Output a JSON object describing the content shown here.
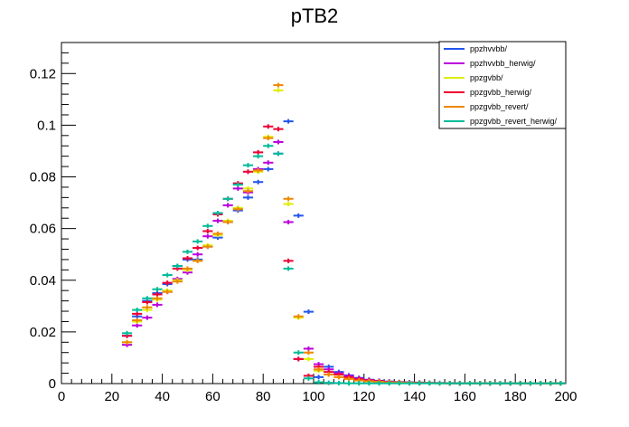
{
  "chart_data": {
    "type": "scatter",
    "title": "pTB2",
    "xlabel": "",
    "ylabel": "",
    "xlim": [
      0,
      200
    ],
    "ylim": [
      0,
      0.132
    ],
    "xticks": [
      "0",
      "20",
      "40",
      "60",
      "80",
      "100",
      "120",
      "140",
      "160",
      "180",
      "200"
    ],
    "xtick_values": [
      0,
      20,
      40,
      60,
      80,
      100,
      120,
      140,
      160,
      180,
      200
    ],
    "yticks": [
      "0",
      "0.02",
      "0.04",
      "0.06",
      "0.08",
      "0.1",
      "0.12"
    ],
    "ytick_values": [
      0,
      0.02,
      0.04,
      0.06,
      0.08,
      0.1,
      0.12
    ],
    "bin_width": 4,
    "grid": false,
    "legend_position": "top-right",
    "x": [
      26,
      30,
      34,
      38,
      42,
      46,
      50,
      54,
      58,
      62,
      66,
      70,
      74,
      78,
      82,
      86,
      90,
      94,
      98,
      102,
      106,
      110,
      114,
      118,
      122,
      126,
      130,
      134,
      138,
      142,
      146,
      150,
      154,
      158,
      162,
      166,
      170,
      174,
      178,
      182,
      186,
      190,
      194,
      198
    ],
    "series": [
      {
        "name": "ppzhvvbb/",
        "color": "#2255ee",
        "values": [
          0.0185,
          0.026,
          0.032,
          0.035,
          0.0385,
          0.0455,
          0.048,
          0.048,
          0.053,
          0.0565,
          0.0625,
          0.067,
          0.072,
          0.078,
          0.083,
          0.089,
          0.1015,
          0.065,
          0.0278,
          0.0025,
          0.0065,
          0.0045,
          0.0032,
          0.0022,
          0.0015,
          0.0011,
          0.0008,
          0.0006,
          0.0005,
          0.0004,
          0.0003,
          0.0002,
          0.0002,
          0.0001,
          0.0001,
          0.0001,
          0.0001,
          0.0001,
          0.0001,
          0.0001,
          0.0001,
          0.0001,
          0.0001,
          0.0001
        ]
      },
      {
        "name": "ppzhvvbb_herwig/",
        "color": "#bb00dd",
        "values": [
          0.015,
          0.0225,
          0.0255,
          0.0305,
          0.0355,
          0.0405,
          0.043,
          0.05,
          0.057,
          0.063,
          0.069,
          0.0755,
          0.074,
          0.083,
          0.0855,
          0.0935,
          0.0625,
          0.0095,
          0.0135,
          0.0075,
          0.0055,
          0.004,
          0.003,
          0.002,
          0.0014,
          0.001,
          0.0007,
          0.0005,
          0.0004,
          0.0003,
          0.0002,
          0.0002,
          0.0001,
          0.0001,
          0.0001,
          0.0001,
          0.0001,
          0.0001,
          0.0001,
          0.0001,
          0.0001,
          0.0001,
          0.0001,
          0.0001
        ]
      },
      {
        "name": "ppzgvbb/",
        "color": "#ddee00",
        "values": [
          0.016,
          0.024,
          0.0285,
          0.0325,
          0.036,
          0.04,
          0.044,
          0.0475,
          0.0535,
          0.0575,
          0.063,
          0.068,
          0.0755,
          0.082,
          0.0955,
          0.1135,
          0.0695,
          0.0255,
          0.0095,
          0.005,
          0.0035,
          0.0025,
          0.0018,
          0.0012,
          0.0009,
          0.0007,
          0.0005,
          0.0004,
          0.0003,
          0.0002,
          0.0002,
          0.0001,
          0.0001,
          0.0001,
          0.0001,
          0.0001,
          0.0001,
          0.0001,
          0.0001,
          0.0001,
          0.0001,
          0.0001,
          0.0001,
          0.0001
        ]
      },
      {
        "name": "ppzgvbb_herwig/",
        "color": "#ee0033",
        "values": [
          0.0185,
          0.027,
          0.0315,
          0.0345,
          0.039,
          0.0445,
          0.0485,
          0.0525,
          0.059,
          0.0655,
          0.0715,
          0.0775,
          0.082,
          0.0895,
          0.0995,
          0.0985,
          0.0475,
          0.0095,
          0.003,
          0.0065,
          0.0045,
          0.0035,
          0.0025,
          0.0017,
          0.0012,
          0.0009,
          0.0006,
          0.0005,
          0.0004,
          0.0003,
          0.0002,
          0.0002,
          0.0001,
          0.0001,
          0.0001,
          0.0001,
          0.0001,
          0.0001,
          0.0001,
          0.0001,
          0.0001,
          0.0001,
          0.0001,
          0.0001
        ]
      },
      {
        "name": "ppzgvbb_revert/",
        "color": "#ee8800",
        "values": [
          0.016,
          0.0245,
          0.0295,
          0.033,
          0.0355,
          0.0395,
          0.0445,
          0.0475,
          0.053,
          0.058,
          0.0625,
          0.0675,
          0.0745,
          0.0825,
          0.095,
          0.1155,
          0.0715,
          0.026,
          0.012,
          0.0055,
          0.0035,
          0.0025,
          0.0018,
          0.0012,
          0.0009,
          0.0007,
          0.0005,
          0.0004,
          0.0003,
          0.0002,
          0.0002,
          0.0001,
          0.0001,
          0.0001,
          0.0001,
          0.0001,
          0.0001,
          0.0001,
          0.0001,
          0.0001,
          0.0001,
          0.0001,
          0.0001,
          0.0001
        ]
      },
      {
        "name": "ppzgvbb_revert_herwig/",
        "color": "#00bb99",
        "values": [
          0.0195,
          0.0285,
          0.033,
          0.0365,
          0.042,
          0.0455,
          0.051,
          0.055,
          0.061,
          0.066,
          0.0715,
          0.077,
          0.0845,
          0.088,
          0.092,
          0.089,
          0.0445,
          0.012,
          0.002,
          0.0005,
          0.0003,
          0.0002,
          0.0001,
          0.0001,
          0.0001,
          0.0001,
          0.0001,
          0.0001,
          0.0001,
          0.0001,
          0.0001,
          0.0001,
          0.0001,
          0.0001,
          0.0001,
          0.0001,
          0.0001,
          0.0001,
          0.0001,
          0.0001,
          0.0001,
          0.0001,
          0.0001,
          0.0001
        ]
      }
    ]
  }
}
